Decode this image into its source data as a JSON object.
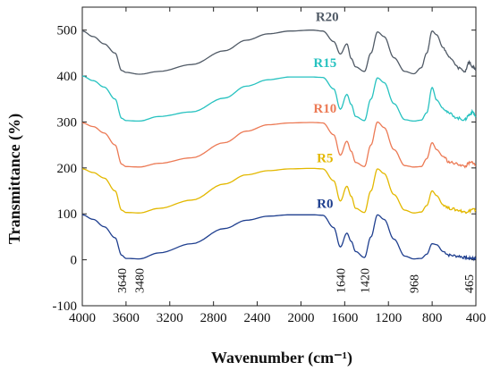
{
  "chart_data": {
    "type": "line",
    "xlabel": "Wavenumber (cm⁻¹)",
    "ylabel": "Transmittance (%)",
    "xlim": [
      4000,
      400
    ],
    "ylim": [
      -100,
      550
    ],
    "x_reversed": true,
    "x_ticks": [
      4000,
      3600,
      3200,
      2800,
      2400,
      2000,
      1600,
      1200,
      800,
      400
    ],
    "y_ticks": [
      -100,
      0,
      100,
      200,
      300,
      400,
      500
    ],
    "grid": false,
    "x": [
      4000,
      3900,
      3800,
      3700,
      3640,
      3600,
      3480,
      3300,
      3000,
      2700,
      2500,
      2300,
      2100,
      1900,
      1800,
      1700,
      1640,
      1580,
      1540,
      1500,
      1420,
      1360,
      1300,
      1240,
      1150,
      1050,
      968,
      900,
      850,
      800,
      760,
      700,
      640,
      560,
      500,
      465,
      430,
      400
    ],
    "series": [
      {
        "name": "R0",
        "color": "#1f3f8f",
        "values": [
          98,
          88,
          72,
          48,
          10,
          3,
          2,
          15,
          35,
          68,
          86,
          95,
          98,
          98,
          97,
          70,
          28,
          58,
          40,
          18,
          5,
          50,
          98,
          88,
          45,
          8,
          2,
          3,
          12,
          35,
          33,
          18,
          10,
          8,
          5,
          3,
          4,
          2
        ]
      },
      {
        "name": "R5",
        "color": "#e3b800",
        "values": [
          198,
          190,
          178,
          150,
          108,
          103,
          102,
          112,
          130,
          165,
          185,
          194,
          198,
          199,
          198,
          172,
          128,
          160,
          138,
          112,
          103,
          150,
          198,
          188,
          142,
          108,
          102,
          104,
          118,
          150,
          140,
          120,
          112,
          108,
          104,
          106,
          110,
          108
        ]
      },
      {
        "name": "R10",
        "color": "#ec7a55",
        "values": [
          298,
          290,
          276,
          250,
          208,
          203,
          202,
          210,
          222,
          255,
          280,
          294,
          298,
          299,
          298,
          272,
          228,
          258,
          236,
          212,
          203,
          250,
          300,
          288,
          240,
          205,
          202,
          203,
          220,
          255,
          240,
          225,
          212,
          208,
          203,
          210,
          212,
          205
        ]
      },
      {
        "name": "R15",
        "color": "#27c2c0",
        "values": [
          400,
          390,
          376,
          350,
          308,
          303,
          302,
          312,
          322,
          352,
          378,
          392,
          398,
          398,
          397,
          372,
          328,
          360,
          338,
          312,
          303,
          350,
          396,
          386,
          340,
          305,
          302,
          304,
          320,
          375,
          348,
          330,
          318,
          308,
          305,
          315,
          322,
          312
        ]
      },
      {
        "name": "R20",
        "color": "#505a66",
        "values": [
          498,
          486,
          470,
          450,
          412,
          408,
          404,
          410,
          425,
          455,
          478,
          492,
          498,
          500,
          498,
          475,
          448,
          470,
          438,
          420,
          410,
          450,
          496,
          486,
          440,
          410,
          405,
          418,
          450,
          498,
          490,
          462,
          440,
          418,
          410,
          430,
          420,
          415
        ]
      }
    ],
    "series_labels": [
      "R20",
      "R15",
      "R10",
      "R5",
      "R0"
    ],
    "annotations": [
      "3640",
      "3480",
      "1640",
      "1420",
      "968",
      "465"
    ]
  }
}
